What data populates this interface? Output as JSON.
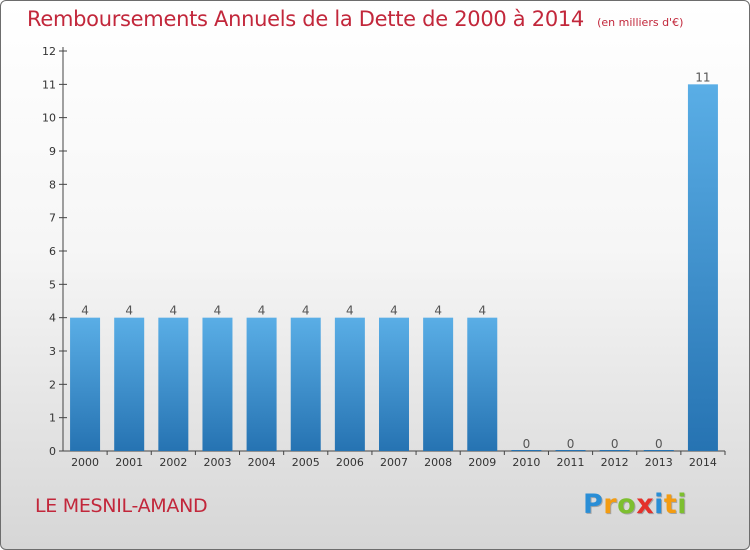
{
  "chart_data": {
    "type": "bar",
    "title": "Remboursements Annuels de la Dette de 2000 à 2014",
    "unit": "(en milliers d'€)",
    "categories": [
      "2000",
      "2001",
      "2002",
      "2003",
      "2004",
      "2005",
      "2006",
      "2007",
      "2008",
      "2009",
      "2010",
      "2011",
      "2012",
      "2013",
      "2014"
    ],
    "values": [
      4,
      4,
      4,
      4,
      4,
      4,
      4,
      4,
      4,
      4,
      0,
      0,
      0,
      0,
      11
    ],
    "data_labels": [
      "4",
      "4",
      "4",
      "4",
      "4",
      "4",
      "4",
      "4",
      "4",
      "4",
      "0",
      "0",
      "0",
      "0",
      "11"
    ],
    "ylim": [
      0,
      12
    ],
    "yticks": [
      "0",
      "1",
      "2",
      "3",
      "4",
      "5",
      "6",
      "7",
      "8",
      "9",
      "10",
      "11",
      "12"
    ],
    "grid": false,
    "colors": {
      "bar_top": "#5aaee6",
      "bar_bottom": "#2673b2",
      "title": "#c2273b"
    }
  },
  "commune": "LE MESNIL-AMAND",
  "brand": {
    "letters": [
      "P",
      "r",
      "o",
      "x",
      "i",
      "t",
      "i"
    ],
    "colors": [
      "#2a8ed6",
      "#f39c12",
      "#7dbf2f",
      "#e4312b",
      "#2a8ed6",
      "#f39c12",
      "#7dbf2f"
    ]
  }
}
